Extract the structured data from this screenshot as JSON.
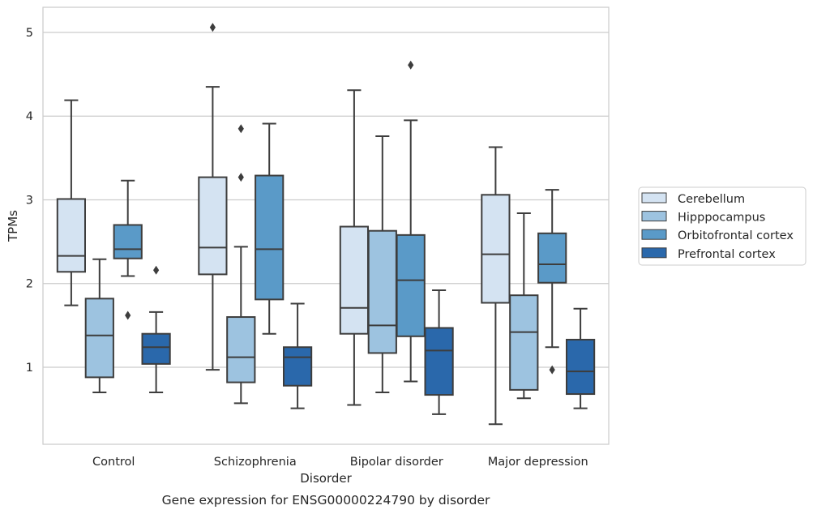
{
  "chart_data": {
    "type": "box",
    "caption": "Gene expression for ENSG00000224790 by disorder",
    "xlabel": "Disorder",
    "ylabel": "TPMs",
    "ylim": [
      0.08,
      5.3
    ],
    "yticks": [
      1,
      2,
      3,
      4,
      5
    ],
    "grid": "horizontal",
    "legend_position": "right",
    "categories": [
      "Control",
      "Schizophrenia",
      "Bipolar disorder",
      "Major depression"
    ],
    "series": [
      {
        "name": "Cerebellum",
        "color": "#d4e3f2",
        "boxes": [
          {
            "whisker_low": 1.74,
            "q1": 2.14,
            "median": 2.33,
            "q3": 3.01,
            "whisker_high": 4.19,
            "outliers": []
          },
          {
            "whisker_low": 0.97,
            "q1": 2.11,
            "median": 2.43,
            "q3": 3.27,
            "whisker_high": 4.35,
            "outliers": [
              5.06
            ]
          },
          {
            "whisker_low": 0.55,
            "q1": 1.4,
            "median": 1.71,
            "q3": 2.68,
            "whisker_high": 4.31,
            "outliers": []
          },
          {
            "whisker_low": 0.32,
            "q1": 1.77,
            "median": 2.35,
            "q3": 3.06,
            "whisker_high": 3.63,
            "outliers": []
          }
        ]
      },
      {
        "name": "Hipppocampus",
        "color": "#9dc3e0",
        "boxes": [
          {
            "whisker_low": 0.7,
            "q1": 0.88,
            "median": 1.38,
            "q3": 1.82,
            "whisker_high": 2.29,
            "outliers": []
          },
          {
            "whisker_low": 0.57,
            "q1": 0.82,
            "median": 1.12,
            "q3": 1.6,
            "whisker_high": 2.44,
            "outliers": [
              3.27,
              3.85
            ]
          },
          {
            "whisker_low": 0.7,
            "q1": 1.17,
            "median": 1.5,
            "q3": 2.63,
            "whisker_high": 3.76,
            "outliers": []
          },
          {
            "whisker_low": 0.63,
            "q1": 0.73,
            "median": 1.42,
            "q3": 1.86,
            "whisker_high": 2.84,
            "outliers": []
          }
        ]
      },
      {
        "name": "Orbitofrontal cortex",
        "color": "#5a9ac8",
        "boxes": [
          {
            "whisker_low": 2.09,
            "q1": 2.3,
            "median": 2.41,
            "q3": 2.7,
            "whisker_high": 3.23,
            "outliers": [
              1.62
            ]
          },
          {
            "whisker_low": 1.4,
            "q1": 1.81,
            "median": 2.41,
            "q3": 3.29,
            "whisker_high": 3.91,
            "outliers": []
          },
          {
            "whisker_low": 0.83,
            "q1": 1.37,
            "median": 2.04,
            "q3": 2.58,
            "whisker_high": 3.95,
            "outliers": [
              4.61
            ]
          },
          {
            "whisker_low": 1.24,
            "q1": 2.01,
            "median": 2.23,
            "q3": 2.6,
            "whisker_high": 3.12,
            "outliers": [
              0.97
            ]
          }
        ]
      },
      {
        "name": "Prefrontal cortex",
        "color": "#2a68ab",
        "boxes": [
          {
            "whisker_low": 0.7,
            "q1": 1.04,
            "median": 1.24,
            "q3": 1.4,
            "whisker_high": 1.66,
            "outliers": [
              2.16
            ]
          },
          {
            "whisker_low": 0.51,
            "q1": 0.78,
            "median": 1.12,
            "q3": 1.24,
            "whisker_high": 1.76,
            "outliers": []
          },
          {
            "whisker_low": 0.44,
            "q1": 0.67,
            "median": 1.2,
            "q3": 1.47,
            "whisker_high": 1.92,
            "outliers": []
          },
          {
            "whisker_low": 0.51,
            "q1": 0.68,
            "median": 0.95,
            "q3": 1.33,
            "whisker_high": 1.7,
            "outliers": []
          }
        ]
      }
    ]
  }
}
